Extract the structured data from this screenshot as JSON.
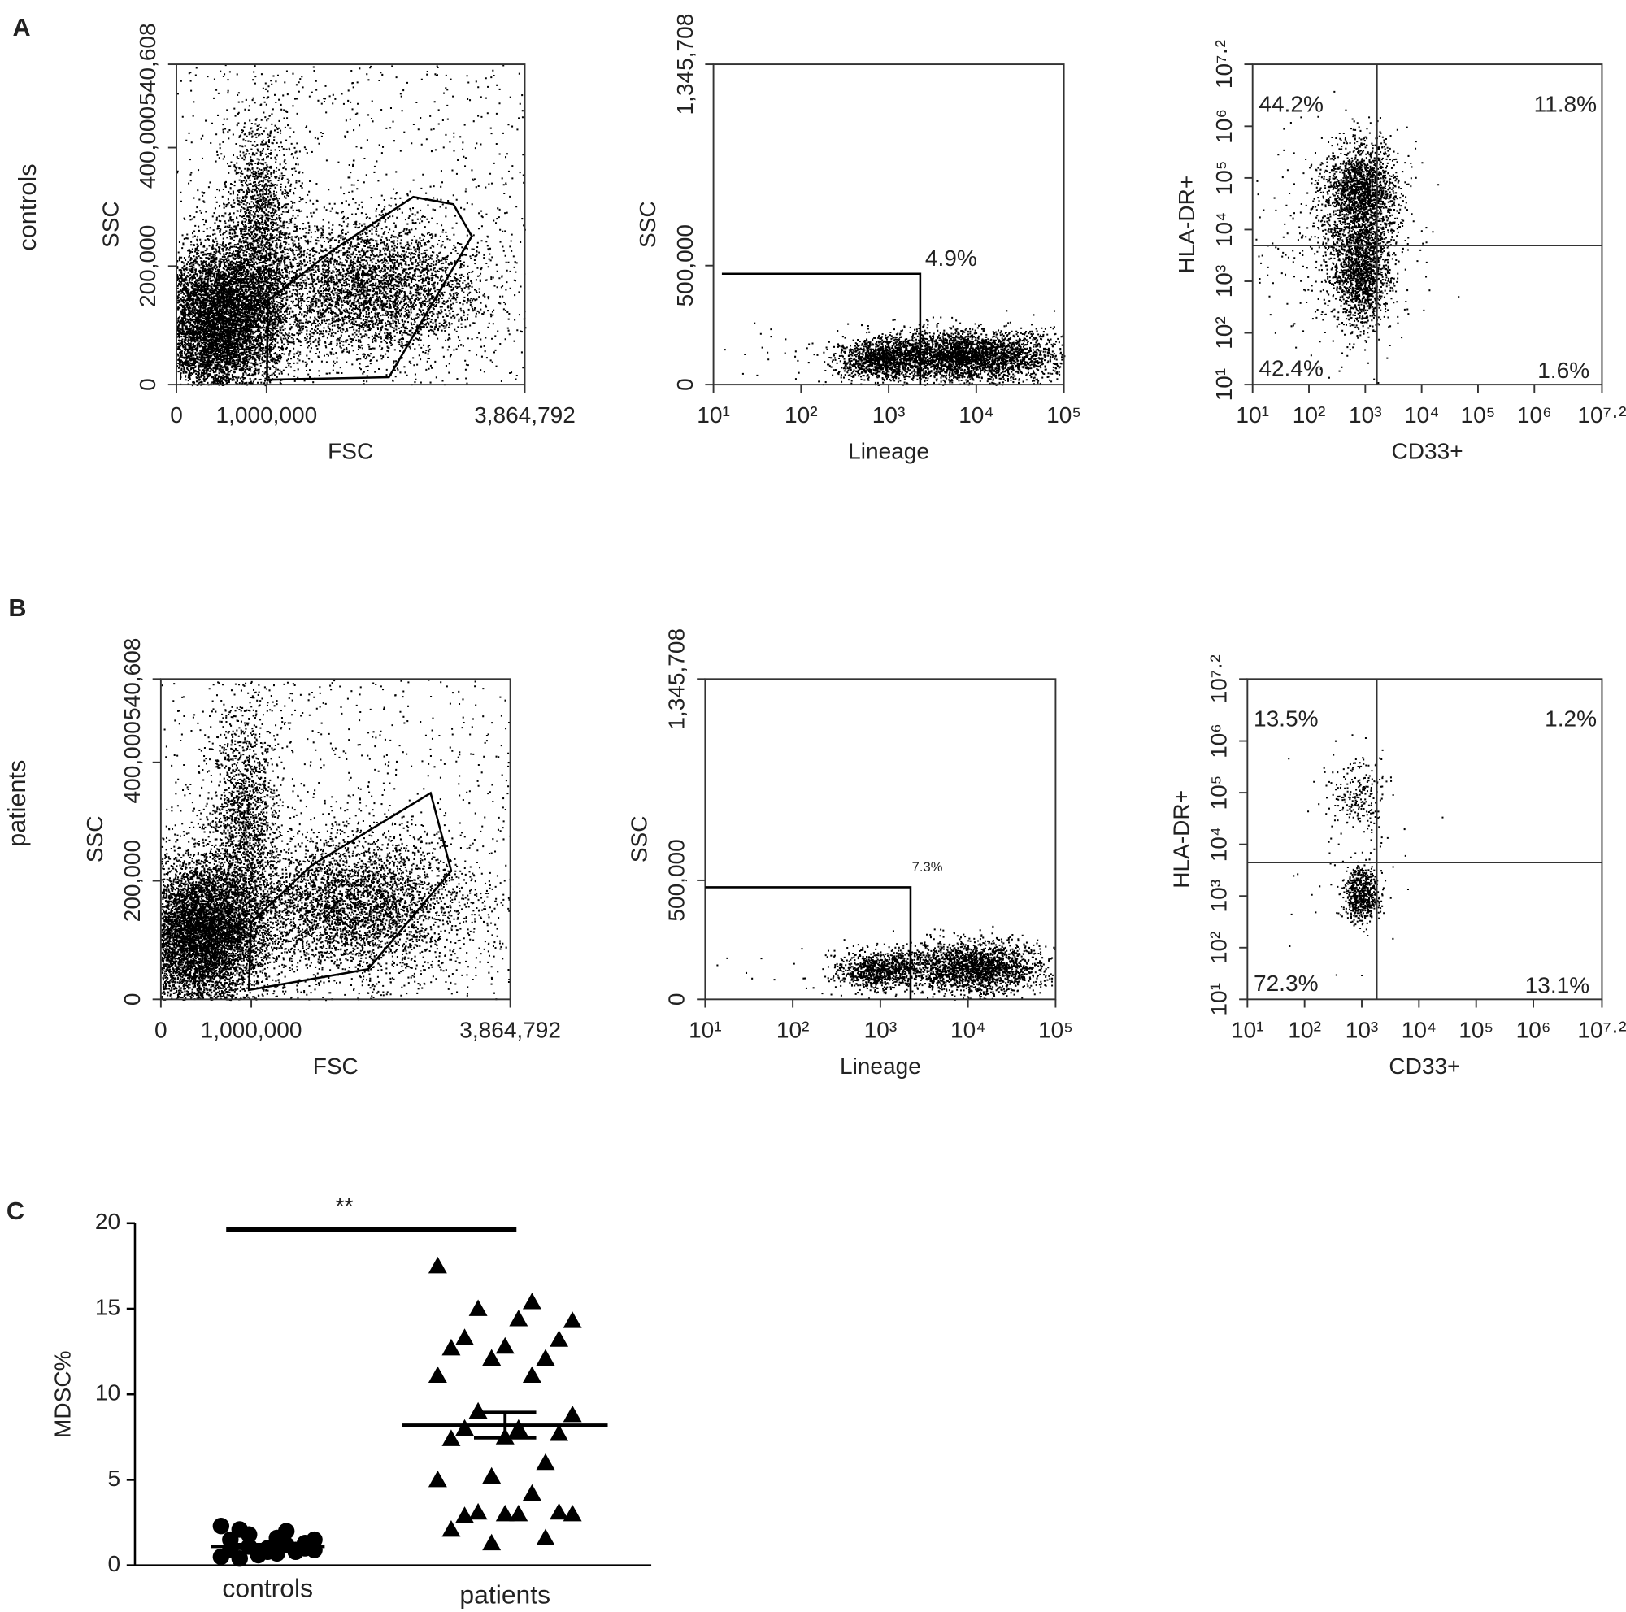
{
  "panel_labels": [
    "A",
    "B",
    "C"
  ],
  "row_labels": [
    "controls",
    "patients"
  ],
  "chart_data": [
    {
      "type": "flow-linear",
      "xlabel": "FSC",
      "ylabel": "SSC",
      "xlim": [
        0,
        3864792
      ],
      "xticks": [
        0,
        {
          "value": 1000000,
          "label": "1,000,000"
        },
        {
          "value": 3864792,
          "label": "3,864,792"
        }
      ],
      "ylim": [
        0,
        540608
      ],
      "yticks": [
        0,
        {
          "value": 200000,
          "label": "200,000"
        },
        {
          "value": 400000,
          "label": "400,000"
        },
        {
          "value": 540608,
          "label": "540,608"
        }
      ]
    },
    {
      "type": "flow-gate",
      "xlabel": "Lineage",
      "ylabel": "SSC",
      "xscale": "log",
      "xlim": [
        10,
        100000
      ],
      "xticks": [
        {
          "value": 10,
          "label": "10¹"
        },
        {
          "value": 100,
          "label": "10²"
        },
        {
          "value": 1000,
          "label": "10³"
        },
        {
          "value": 10000,
          "label": "10⁴"
        },
        {
          "value": 100000,
          "label": "10⁵"
        }
      ],
      "ylim": [
        0,
        1345708
      ],
      "yticks": [
        0,
        {
          "value": 500000,
          "label": "500,000"
        },
        {
          "value": 1345708,
          "label": "1,345,708"
        }
      ],
      "annotations": [
        "4.9%"
      ]
    },
    {
      "type": "flow-quadrant",
      "xlabel": "CD33+",
      "ylabel": "HLA-DR+",
      "xscale": "log",
      "yscale": "log",
      "xlim": [
        10,
        15848932
      ],
      "xticks": [
        {
          "value": 10,
          "label": "10¹"
        },
        {
          "value": 100,
          "label": "10²"
        },
        {
          "value": 1000,
          "label": "10³"
        },
        {
          "value": 10000,
          "label": "10⁴"
        },
        {
          "value": 100000,
          "label": "10⁵"
        },
        {
          "value": 1000000,
          "label": "10⁶"
        },
        {
          "value": 15848932,
          "label": "10⁷·²"
        }
      ],
      "ylim": [
        10,
        15848932
      ],
      "yticks": [
        {
          "value": 10,
          "label": "10¹"
        },
        {
          "value": 100,
          "label": "10²"
        },
        {
          "value": 1000,
          "label": "10³"
        },
        {
          "value": 10000,
          "label": "10⁴"
        },
        {
          "value": 100000,
          "label": "10⁵"
        },
        {
          "value": 1000000,
          "label": "10⁶"
        },
        {
          "value": 15848932,
          "label": "10⁷·²"
        }
      ],
      "quadrants": {
        "upper_left": "44.2%",
        "upper_right": "11.8%",
        "lower_left": "42.4%",
        "lower_right": "1.6%"
      }
    },
    {
      "type": "flow-linear",
      "xlabel": "FSC",
      "ylabel": "SSC",
      "xlim": [
        0,
        3864792
      ],
      "xticks": [
        0,
        {
          "value": 1000000,
          "label": "1,000,000"
        },
        {
          "value": 3864792,
          "label": "3,864,792"
        }
      ],
      "ylim": [
        0,
        540608
      ],
      "yticks": [
        0,
        {
          "value": 200000,
          "label": "200,000"
        },
        {
          "value": 400000,
          "label": "400,000"
        },
        {
          "value": 540608,
          "label": "540,608"
        }
      ]
    },
    {
      "type": "flow-gate",
      "xlabel": "Lineage",
      "ylabel": "SSC",
      "xscale": "log",
      "xlim": [
        10,
        100000
      ],
      "xticks": [
        {
          "value": 10,
          "label": "10¹"
        },
        {
          "value": 100,
          "label": "10²"
        },
        {
          "value": 1000,
          "label": "10³"
        },
        {
          "value": 10000,
          "label": "10⁴"
        },
        {
          "value": 100000,
          "label": "10⁵"
        }
      ],
      "ylim": [
        0,
        1345708
      ],
      "yticks": [
        0,
        {
          "value": 500000,
          "label": "500,000"
        },
        {
          "value": 1345708,
          "label": "1,345,708"
        }
      ],
      "annotations": [
        "7.3%"
      ]
    },
    {
      "type": "flow-quadrant",
      "xlabel": "CD33+",
      "ylabel": "HLA-DR+",
      "xscale": "log",
      "yscale": "log",
      "xlim": [
        10,
        15848932
      ],
      "xticks": [
        {
          "value": 10,
          "label": "10¹"
        },
        {
          "value": 100,
          "label": "10²"
        },
        {
          "value": 1000,
          "label": "10³"
        },
        {
          "value": 10000,
          "label": "10⁴"
        },
        {
          "value": 100000,
          "label": "10⁵"
        },
        {
          "value": 1000000,
          "label": "10⁶"
        },
        {
          "value": 15848932,
          "label": "10⁷·²"
        }
      ],
      "ylim": [
        10,
        15848932
      ],
      "yticks": [
        {
          "value": 10,
          "label": "10¹"
        },
        {
          "value": 100,
          "label": "10²"
        },
        {
          "value": 1000,
          "label": "10³"
        },
        {
          "value": 10000,
          "label": "10⁴"
        },
        {
          "value": 100000,
          "label": "10⁵"
        },
        {
          "value": 1000000,
          "label": "10⁶"
        },
        {
          "value": 15848932,
          "label": "10⁷·²"
        }
      ],
      "quadrants": {
        "upper_left": "13.5%",
        "upper_right": "1.2%",
        "lower_left": "72.3%",
        "lower_right": "13.1%"
      }
    },
    {
      "type": "dot",
      "ylabel": "MDSC%",
      "categories": [
        "controls",
        "patients"
      ],
      "ylim": [
        0,
        20
      ],
      "yticks": [
        0,
        5,
        10,
        15,
        20
      ],
      "color": "#000000",
      "annotation": "**",
      "groups": [
        {
          "marker": "circle",
          "values": [
            2.3,
            2.0,
            1.8,
            1.5,
            1.6,
            2.1,
            1.3,
            1.0,
            0.9,
            0.8,
            0.6,
            0.5,
            1.2,
            1.1,
            0.9,
            0.7,
            0.4,
            1.0,
            0.8,
            1.5,
            0.9
          ],
          "mean": 1.1,
          "sem": 0.12
        },
        {
          "marker": "triangle",
          "values": [
            17.5,
            15.4,
            15.0,
            14.3,
            14.4,
            13.3,
            13.2,
            12.8,
            12.7,
            12.1,
            12.1,
            11.1,
            11.1,
            9.0,
            8.8,
            8.0,
            8.0,
            7.7,
            7.5,
            7.4,
            6.0,
            5.2,
            5.0,
            4.2,
            3.1,
            3.0,
            3.0,
            2.9,
            3.1,
            3.0,
            2.1,
            1.6,
            1.3
          ],
          "mean": 8.2,
          "sem": 0.75
        }
      ]
    }
  ]
}
